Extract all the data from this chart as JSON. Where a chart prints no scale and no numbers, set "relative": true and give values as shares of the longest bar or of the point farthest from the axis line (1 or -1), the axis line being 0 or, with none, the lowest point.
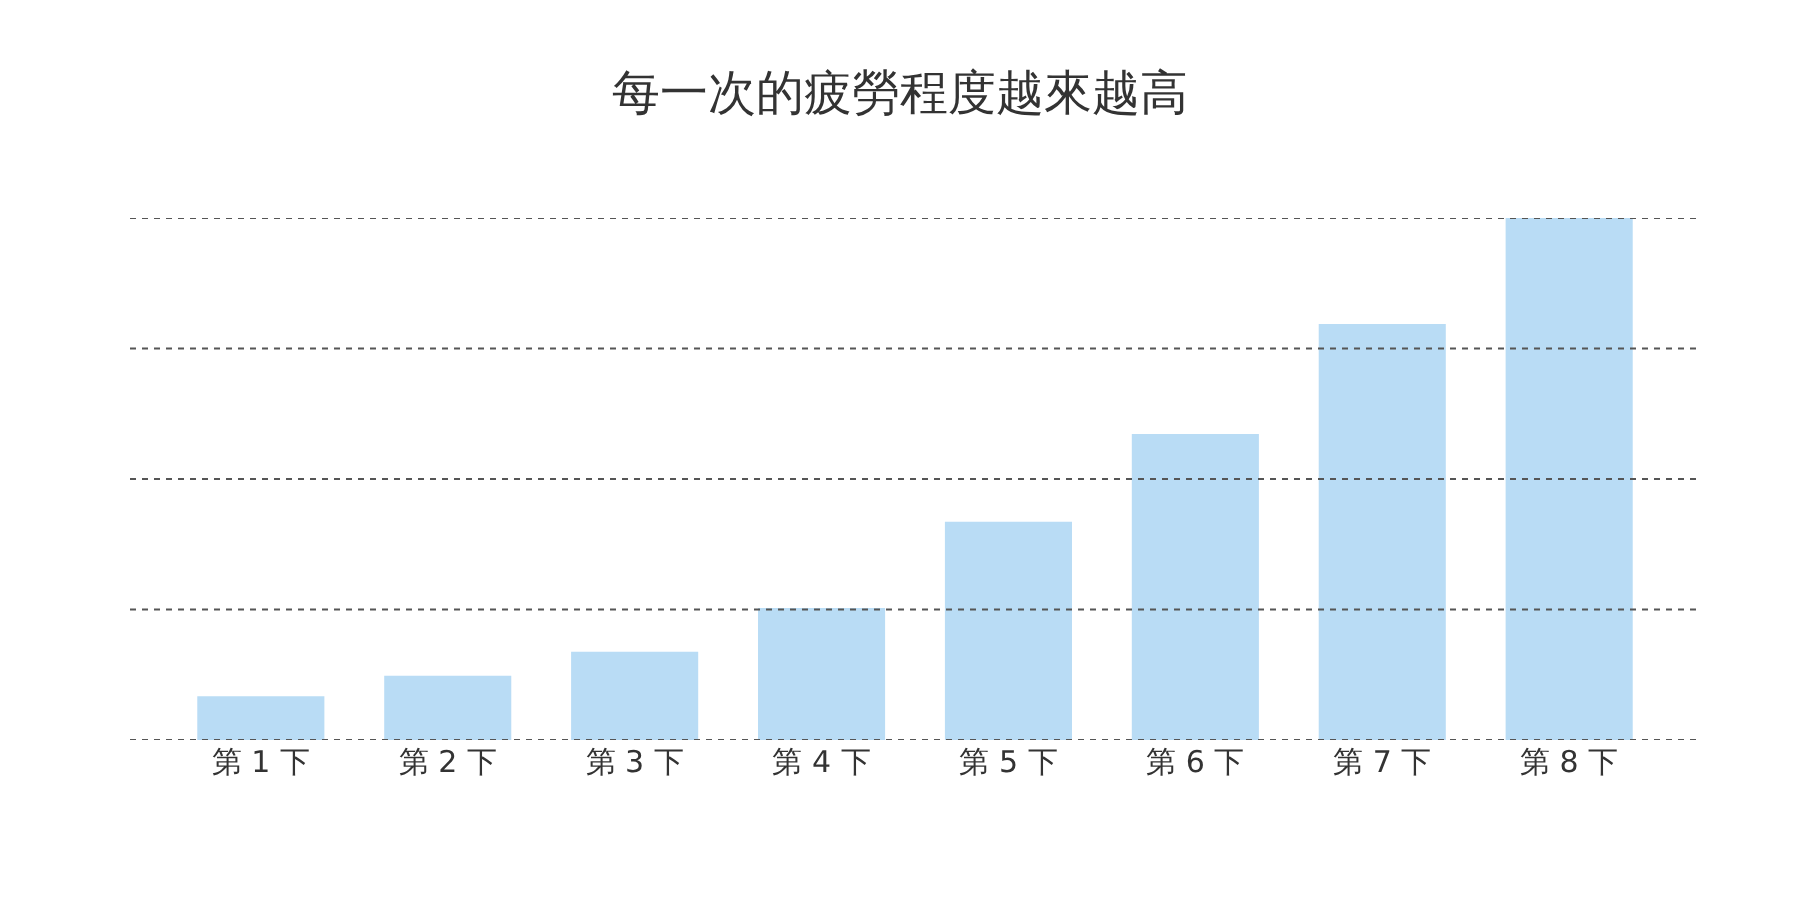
{
  "chart_data": {
    "type": "bar",
    "title": "每一次的疲勞程度越來越高",
    "relative": true,
    "categories": [
      "第 1 下",
      "第 2 下",
      "第 3 下",
      "第 4 下",
      "第 5 下",
      "第 6 下",
      "第 7 下",
      "第 8 下"
    ],
    "values": [
      0.084,
      0.123,
      0.169,
      0.253,
      0.418,
      0.586,
      0.797,
      1
    ],
    "color": "#b9dcf5",
    "ref_lines": [
      {
        "axis": "y",
        "value": 0,
        "color": "#555555",
        "line_style": "dotted"
      },
      {
        "axis": "y",
        "value": 0.25,
        "color": "#555555",
        "line_style": "dotted"
      },
      {
        "axis": "y",
        "value": 0.5,
        "color": "#555555",
        "line_style": "dotted"
      },
      {
        "axis": "y",
        "value": 0.75,
        "color": "#555555",
        "line_style": "dotted"
      },
      {
        "axis": "y",
        "value": 1,
        "color": "#555555",
        "line_style": "dotted"
      }
    ]
  }
}
